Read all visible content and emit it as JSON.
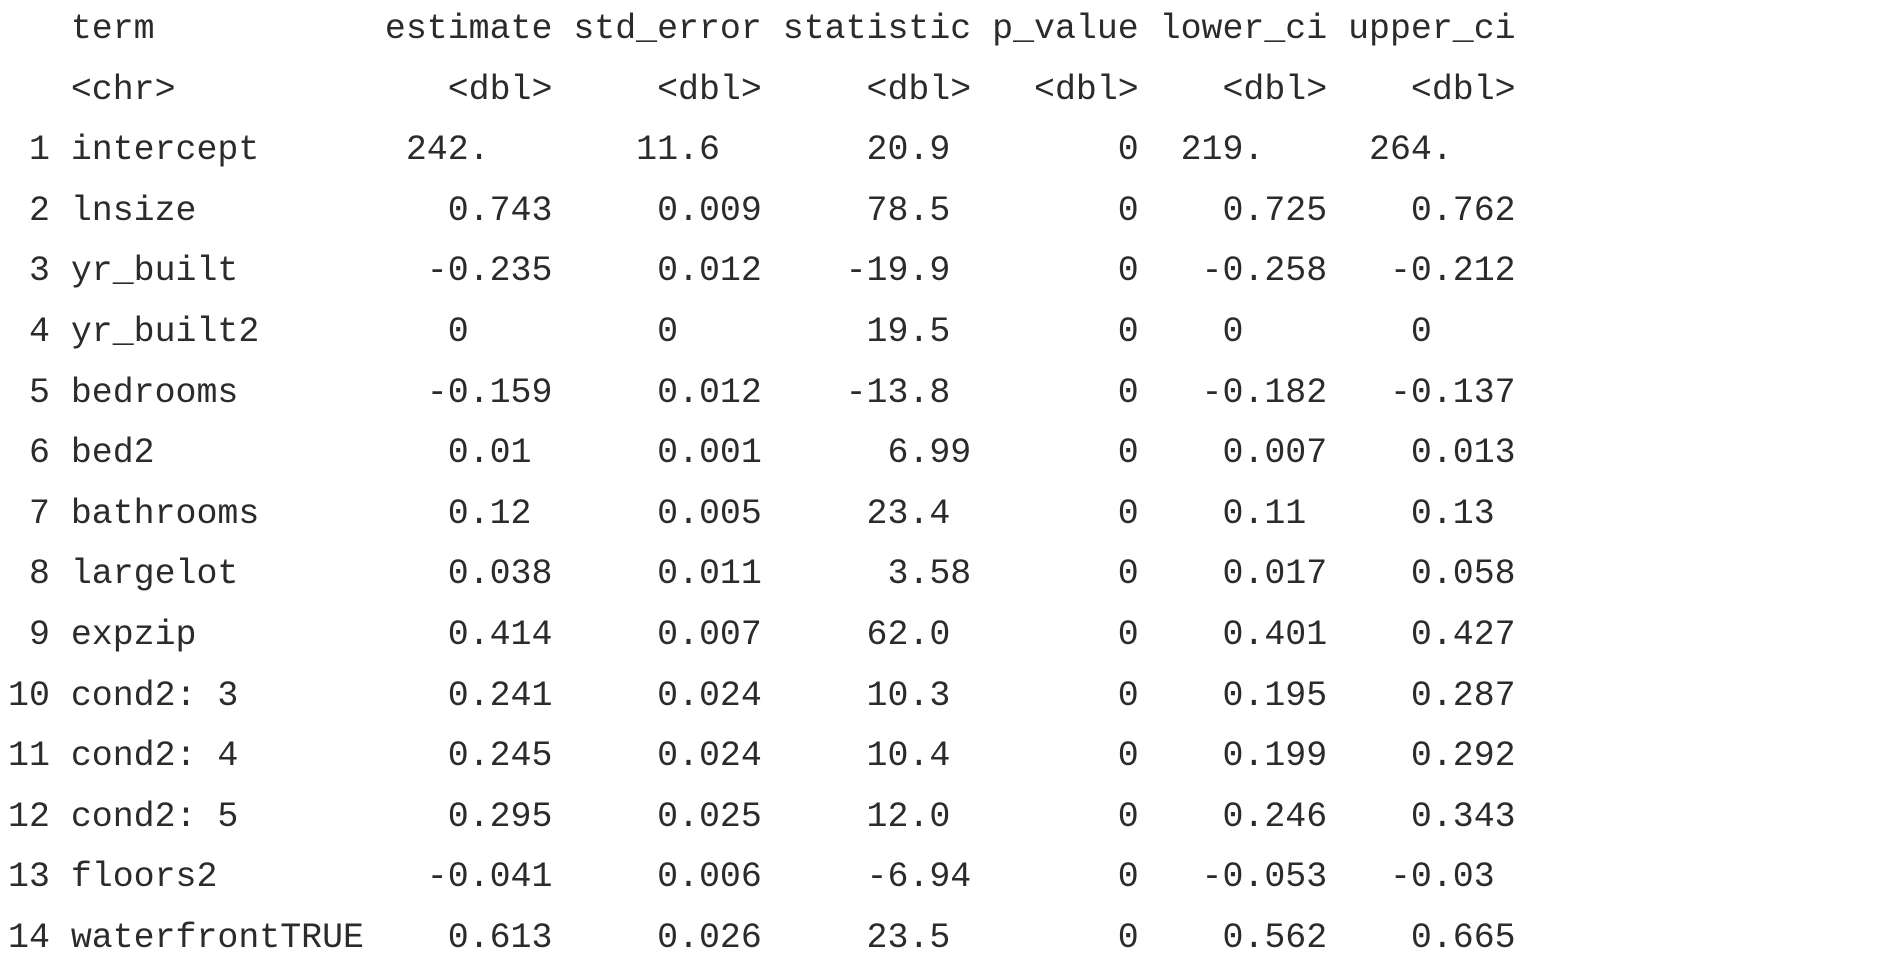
{
  "table": {
    "columns": [
      {
        "name": "term",
        "type": "<chr>"
      },
      {
        "name": "estimate",
        "type": "<dbl>"
      },
      {
        "name": "std_error",
        "type": "<dbl>"
      },
      {
        "name": "statistic",
        "type": "<dbl>"
      },
      {
        "name": "p_value",
        "type": "<dbl>"
      },
      {
        "name": "lower_ci",
        "type": "<dbl>"
      },
      {
        "name": "upper_ci",
        "type": "<dbl>"
      }
    ],
    "rows": [
      {
        "index": "1",
        "term": "intercept",
        "estimate": "242.",
        "std_error": "11.6",
        "statistic": "20.9",
        "p_value": "0",
        "lower_ci": "219.",
        "upper_ci": "264."
      },
      {
        "index": "2",
        "term": "lnsize",
        "estimate": "0.743",
        "std_error": "0.009",
        "statistic": "78.5",
        "p_value": "0",
        "lower_ci": "0.725",
        "upper_ci": "0.762"
      },
      {
        "index": "3",
        "term": "yr_built",
        "estimate": "-0.235",
        "std_error": "0.012",
        "statistic": "-19.9",
        "p_value": "0",
        "lower_ci": "-0.258",
        "upper_ci": "-0.212"
      },
      {
        "index": "4",
        "term": "yr_built2",
        "estimate": "0",
        "std_error": "0",
        "statistic": "19.5",
        "p_value": "0",
        "lower_ci": "0",
        "upper_ci": "0"
      },
      {
        "index": "5",
        "term": "bedrooms",
        "estimate": "-0.159",
        "std_error": "0.012",
        "statistic": "-13.8",
        "p_value": "0",
        "lower_ci": "-0.182",
        "upper_ci": "-0.137"
      },
      {
        "index": "6",
        "term": "bed2",
        "estimate": "0.01",
        "std_error": "0.001",
        "statistic": "6.99",
        "p_value": "0",
        "lower_ci": "0.007",
        "upper_ci": "0.013"
      },
      {
        "index": "7",
        "term": "bathrooms",
        "estimate": "0.12",
        "std_error": "0.005",
        "statistic": "23.4",
        "p_value": "0",
        "lower_ci": "0.11",
        "upper_ci": "0.13"
      },
      {
        "index": "8",
        "term": "largelot",
        "estimate": "0.038",
        "std_error": "0.011",
        "statistic": "3.58",
        "p_value": "0",
        "lower_ci": "0.017",
        "upper_ci": "0.058"
      },
      {
        "index": "9",
        "term": "expzip",
        "estimate": "0.414",
        "std_error": "0.007",
        "statistic": "62.0",
        "p_value": "0",
        "lower_ci": "0.401",
        "upper_ci": "0.427"
      },
      {
        "index": "10",
        "term": "cond2: 3",
        "estimate": "0.241",
        "std_error": "0.024",
        "statistic": "10.3",
        "p_value": "0",
        "lower_ci": "0.195",
        "upper_ci": "0.287"
      },
      {
        "index": "11",
        "term": "cond2: 4",
        "estimate": "0.245",
        "std_error": "0.024",
        "statistic": "10.4",
        "p_value": "0",
        "lower_ci": "0.199",
        "upper_ci": "0.292"
      },
      {
        "index": "12",
        "term": "cond2: 5",
        "estimate": "0.295",
        "std_error": "0.025",
        "statistic": "12.0",
        "p_value": "0",
        "lower_ci": "0.246",
        "upper_ci": "0.343"
      },
      {
        "index": "13",
        "term": "floors2",
        "estimate": "-0.041",
        "std_error": "0.006",
        "statistic": "-6.94",
        "p_value": "0",
        "lower_ci": "-0.053",
        "upper_ci": "-0.03"
      },
      {
        "index": "14",
        "term": "waterfrontTRUE",
        "estimate": "0.613",
        "std_error": "0.026",
        "statistic": "23.5",
        "p_value": "0",
        "lower_ci": "0.562",
        "upper_ci": "0.665"
      }
    ]
  }
}
